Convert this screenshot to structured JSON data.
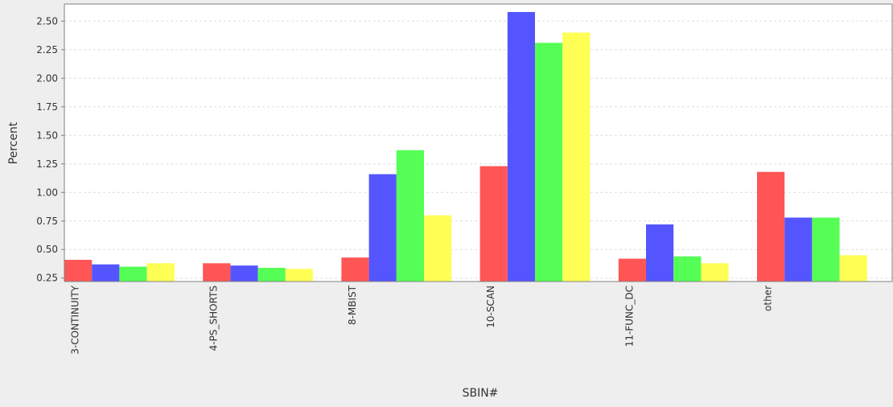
{
  "chart_data": {
    "type": "bar",
    "title": "",
    "xlabel": "SBIN#",
    "ylabel": "Percent",
    "categories": [
      "3-CONTINUITY",
      "4-PS_SHORTS",
      "8-MBIST",
      "10-SCAN",
      "11-FUNC_DC",
      "other"
    ],
    "series": [
      {
        "color": "#ff5555",
        "values": [
          0.41,
          0.38,
          0.43,
          1.23,
          0.42,
          1.18
        ]
      },
      {
        "color": "#5555ff",
        "values": [
          0.37,
          0.36,
          1.16,
          2.58,
          0.72,
          0.78
        ]
      },
      {
        "color": "#55ff55",
        "values": [
          0.35,
          0.34,
          1.37,
          2.31,
          0.44,
          0.78
        ]
      },
      {
        "color": "#ffff55",
        "values": [
          0.38,
          0.33,
          0.8,
          2.4,
          0.38,
          0.45
        ]
      }
    ],
    "ylim": [
      0.22,
      2.65
    ],
    "yticks": [
      "0.25",
      "0.50",
      "0.75",
      "1.00",
      "1.25",
      "1.50",
      "1.75",
      "2.00",
      "2.25",
      "2.50"
    ],
    "grid": true,
    "legend": "none"
  }
}
